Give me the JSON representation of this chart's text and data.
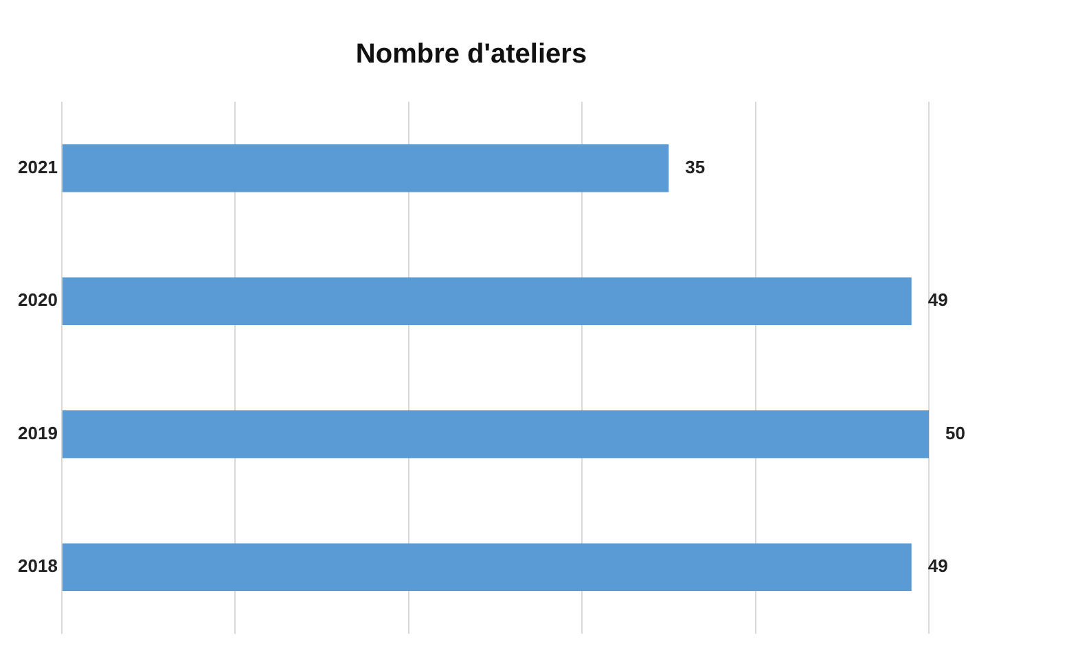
{
  "chart_data": {
    "type": "bar",
    "orientation": "horizontal",
    "title": "Nombre d'ateliers",
    "categories": [
      "2021",
      "2020",
      "2019",
      "2018"
    ],
    "values": [
      35,
      49,
      50,
      49
    ],
    "color": "#5b9bd5",
    "xlim": [
      0,
      50
    ],
    "xticks": [
      {
        "value": 0,
        "label": null
      },
      {
        "value": 10,
        "label": null
      },
      {
        "value": 20,
        "label": null
      },
      {
        "value": 30,
        "label": null
      },
      {
        "value": 40,
        "label": null
      },
      {
        "value": 50,
        "label": null
      }
    ],
    "grid": "x",
    "tick_labels": "y",
    "data_labels": true,
    "legend": false
  }
}
